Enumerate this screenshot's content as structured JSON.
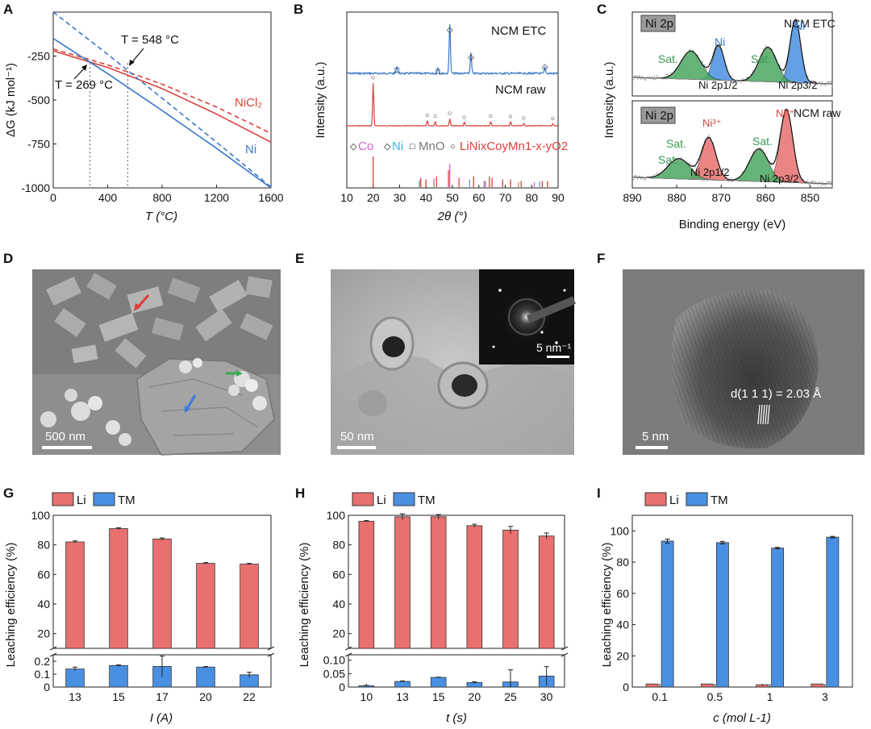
{
  "panel_labels": [
    "A",
    "B",
    "C",
    "D",
    "E",
    "F",
    "G",
    "H",
    "I"
  ],
  "colors": {
    "red": "#e8706e",
    "blue": "#4a90e2",
    "redline": "#d9413a",
    "blueline": "#3a78c8",
    "green": "#4aa860",
    "gray_xps": "#999999",
    "magenta": "#d65fd0",
    "cyan": "#3ab7e6"
  },
  "panelA": {
    "ylabel": "ΔG (kJ mol⁻¹)",
    "xlabel": "T (°C)",
    "label_nicl2": "NiCl₂",
    "label_ni": "Ni",
    "ann_548": "T = 548 °C",
    "ann_269": "T = 269 °C"
  },
  "panelB": {
    "ylabel": "Intensity (a.u.)",
    "xlabel": "2θ (°)",
    "label_etc": "NCM ETC",
    "label_raw": "NCM raw",
    "legend": {
      "co": "Co",
      "ni": "Ni",
      "mno": "MnO",
      "ncm": "LiNixCoyMn1-x-yO2"
    }
  },
  "panelC": {
    "ylabel": "Intensity (a.u.)",
    "xlabel": "Binding energy (eV)",
    "top_box": "Ni 2p",
    "top_tag": "NCM ETC",
    "top_peak1": "Ni",
    "top_peak2": "Ni",
    "sat1": "Sat.",
    "sat2": "Sat.",
    "p12": "Ni 2p1/2",
    "p32": "Ni 2p3/2",
    "bot_box": "Ni 2p",
    "bot_tag": "NCM raw",
    "bot_peak1": "Ni³⁺",
    "bot_peak2": "Ni³⁺",
    "bsat1": "Sat.",
    "bsat2": "Sat.",
    "bsat3": "Sat.",
    "bp12": "Ni 2p1/2",
    "bp32": "Ni 2p3/2"
  },
  "panelD": {
    "scale": "500 nm"
  },
  "panelE": {
    "scale": "50 nm",
    "inset_scale": "5 nm⁻¹"
  },
  "panelF": {
    "scale": "5 nm",
    "annotation": "d(1 1 1) = 2.03 Å"
  },
  "legend_li": "Li",
  "legend_tm": "TM",
  "ylabel_leach": "Leaching efficiency (%)",
  "chart_data": [
    {
      "id": "A",
      "type": "line",
      "title": "",
      "xlabel": "T (°C)",
      "ylabel": "ΔG (kJ mol-1)",
      "xlim": [
        0,
        1600
      ],
      "ylim": [
        -1000,
        0
      ],
      "xticks": [
        "0",
        "400",
        "800",
        "1200",
        "1600"
      ],
      "yticks": [
        "-250",
        "-500",
        "-750",
        "-1000"
      ],
      "series": [
        {
          "name": "NiCl2 solid",
          "color": "#d9413a",
          "dash": false,
          "x": [
            0,
            400,
            800,
            1200,
            1600
          ],
          "y": [
            -220,
            -315,
            -435,
            -580,
            -740
          ]
        },
        {
          "name": "NiCl2 dashed",
          "color": "#d9413a",
          "dash": true,
          "x": [
            0,
            400,
            800,
            1200,
            1600
          ],
          "y": [
            -210,
            -300,
            -410,
            -540,
            -690
          ]
        },
        {
          "name": "Ni solid",
          "color": "#3a78c8",
          "dash": false,
          "x": [
            0,
            400,
            800,
            1200,
            1600
          ],
          "y": [
            -150,
            -350,
            -560,
            -775,
            -1000
          ]
        },
        {
          "name": "Ni dashed",
          "color": "#3a78c8",
          "dash": true,
          "x": [
            0,
            400,
            800,
            1200,
            1600
          ],
          "y": [
            0,
            -240,
            -490,
            -740,
            -995
          ]
        }
      ],
      "vlines": [
        269,
        548
      ]
    },
    {
      "id": "B",
      "type": "line",
      "xlabel": "2θ (°)",
      "ylabel": "Intensity (a.u.)",
      "xlim": [
        10,
        90
      ],
      "xticks": [
        "10",
        "20",
        "30",
        "40",
        "50",
        "60",
        "70",
        "80",
        "90"
      ],
      "etc_peaks": [
        [
          29,
          0.15
        ],
        [
          44.5,
          0.12
        ],
        [
          49,
          1.0
        ],
        [
          57,
          0.4
        ],
        [
          85,
          0.12
        ]
      ],
      "raw_peaks": [
        [
          20,
          1.0
        ],
        [
          40.5,
          0.12
        ],
        [
          43.5,
          0.1
        ],
        [
          49,
          0.17
        ],
        [
          54.5,
          0.08
        ],
        [
          64.5,
          0.1
        ],
        [
          72,
          0.09
        ],
        [
          77,
          0.06
        ],
        [
          88,
          0.05
        ]
      ],
      "ref_red": [
        [
          20,
          1.0
        ],
        [
          38,
          0.3
        ],
        [
          40,
          0.25
        ],
        [
          44,
          0.35
        ],
        [
          48.5,
          0.55
        ],
        [
          52.5,
          0.3
        ],
        [
          58,
          0.35
        ],
        [
          64,
          0.35
        ],
        [
          65,
          0.3
        ],
        [
          69,
          0.25
        ],
        [
          72,
          0.25
        ],
        [
          76,
          0.2
        ],
        [
          84,
          0.2
        ],
        [
          86,
          0.2
        ]
      ],
      "ref_mag": [
        [
          49,
          0.75
        ],
        [
          62,
          0.2
        ],
        [
          81,
          0.15
        ]
      ],
      "ref_cyan": [
        [
          56.5,
          0.25
        ],
        [
          83,
          0.18
        ]
      ],
      "ref_gray": [
        [
          37.5,
          0.22
        ],
        [
          43,
          0.28
        ],
        [
          62.5,
          0.2
        ],
        [
          75,
          0.15
        ]
      ]
    },
    {
      "id": "C",
      "type": "line",
      "xlabel": "Binding energy (eV)",
      "ylabel": "Intensity (a.u.)",
      "xlim": [
        890,
        845
      ],
      "xticks": [
        "890",
        "880",
        "870",
        "860",
        "850"
      ],
      "top_peaks": [
        {
          "center": 853.3,
          "height": 1.0,
          "width": 1.7,
          "color": "#4a90e2"
        },
        {
          "center": 870.6,
          "height": 0.55,
          "width": 1.8,
          "color": "#4a90e2"
        },
        {
          "center": 859.5,
          "height": 0.55,
          "width": 2.8,
          "color": "#4aa860"
        },
        {
          "center": 876.8,
          "height": 0.45,
          "width": 3.2,
          "color": "#4aa860"
        }
      ],
      "bot_peaks": [
        {
          "center": 855.3,
          "height": 1.0,
          "width": 2.0,
          "color": "#e8706e"
        },
        {
          "center": 872.8,
          "height": 0.58,
          "width": 2.3,
          "color": "#e8706e"
        },
        {
          "center": 861.5,
          "height": 0.45,
          "width": 3.0,
          "color": "#4aa860"
        },
        {
          "center": 879.5,
          "height": 0.28,
          "width": 3.5,
          "color": "#4aa860"
        }
      ]
    },
    {
      "id": "G",
      "type": "bar",
      "xlabel": "I (A)",
      "ylabel": "Leaching efficiency (%)",
      "categories": [
        "13",
        "15",
        "17",
        "20",
        "22"
      ],
      "series": [
        {
          "name": "Li",
          "values": [
            82,
            91,
            84,
            67.5,
            67
          ],
          "errors": [
            0.7,
            0.6,
            0.7,
            0.5,
            0.5
          ]
        },
        {
          "name": "TM",
          "values": [
            0.14,
            0.167,
            0.16,
            0.155,
            0.095
          ],
          "errors": [
            0.015,
            0.005,
            0.08,
            0.004,
            0.02
          ]
        }
      ],
      "upper_ylim": [
        10,
        100
      ],
      "upper_yticks": [
        "20",
        "40",
        "60",
        "80",
        "100"
      ],
      "lower_ylim": [
        0,
        0.25
      ],
      "lower_yticks": [
        "0",
        "0.1",
        "0.2"
      ]
    },
    {
      "id": "H",
      "type": "bar",
      "xlabel": "t (s)",
      "ylabel": "Leaching efficiency (%)",
      "categories": [
        "10",
        "13",
        "15",
        "20",
        "25",
        "30"
      ],
      "series": [
        {
          "name": "Li",
          "values": [
            96,
            99,
            99,
            93,
            90,
            86
          ],
          "errors": [
            0.5,
            2.0,
            1.5,
            1.0,
            2.5,
            2.0
          ]
        },
        {
          "name": "TM",
          "values": [
            0.005,
            0.021,
            0.036,
            0.017,
            0.019,
            0.041
          ],
          "errors": [
            0.001,
            0.002,
            0.001,
            0.003,
            0.045,
            0.035
          ]
        }
      ],
      "upper_ylim": [
        10,
        100
      ],
      "upper_yticks": [
        "20",
        "40",
        "60",
        "80",
        "100"
      ],
      "lower_ylim": [
        0,
        0.12
      ],
      "lower_yticks": [
        "0",
        "0.05",
        "0.10"
      ]
    },
    {
      "id": "I",
      "type": "bar",
      "xlabel": "c (mol L-1)",
      "ylabel": "Leaching efficiency (%)",
      "categories": [
        "0.1",
        "0.5",
        "1",
        "3"
      ],
      "series": [
        {
          "name": "Li",
          "values": [
            2,
            2,
            1.5,
            2
          ],
          "errors": [
            0,
            0,
            0.6,
            0
          ]
        },
        {
          "name": "TM",
          "values": [
            93.5,
            92.5,
            89,
            96
          ],
          "errors": [
            1.3,
            0.8,
            0.5,
            0.5
          ]
        }
      ],
      "ylim": [
        0,
        110
      ],
      "yticks": [
        "0",
        "20",
        "40",
        "60",
        "80",
        "100"
      ]
    }
  ]
}
